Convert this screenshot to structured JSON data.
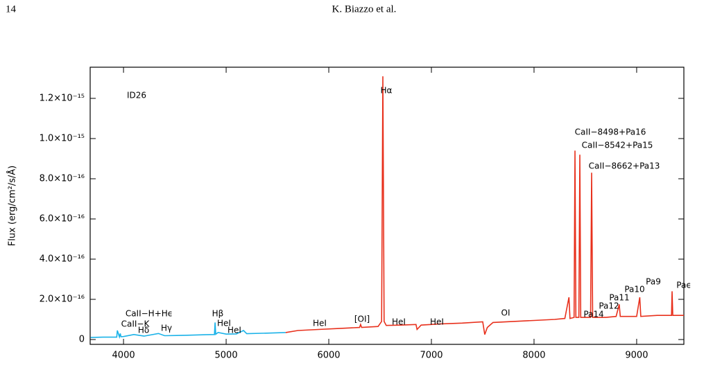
{
  "header": {
    "page": "14",
    "authors": "K. Biazzo et al."
  },
  "chart_data": {
    "type": "line",
    "ylabel": "Flux (erg/cm²/s/Å)",
    "xlim": [
      3675,
      9460
    ],
    "ylim": [
      -2.4e-17,
      1.355e-15
    ],
    "xticks": [
      4000,
      5000,
      6000,
      7000,
      8000,
      9000
    ],
    "yticks": [
      0,
      {
        "value": 2e-16,
        "label": "2.0×10⁻¹⁶"
      },
      {
        "value": 4e-16,
        "label": "4.0×10⁻¹⁶"
      },
      {
        "value": 6e-16,
        "label": "6.0×10⁻¹⁶"
      },
      {
        "value": 8e-16,
        "label": "8.0×10⁻¹⁶"
      },
      {
        "value": 1e-15,
        "label": "1.0×10⁻¹⁵"
      },
      {
        "value": 1.2e-15,
        "label": "1.2×10⁻¹⁵"
      }
    ],
    "series": [
      {
        "color": "#1ab2e8",
        "x": [
          3680,
          3800,
          3934,
          3940,
          3960,
          3968,
          3975,
          4000,
          4101,
          4200,
          4340,
          4400,
          4600,
          4800,
          4886,
          4892,
          4898,
          4921,
          5000,
          5100,
          5169,
          5200,
          5400,
          5580
        ],
        "values": [
          1e-17,
          1.2e-17,
          1.2e-17,
          4.5e-17,
          1.3e-17,
          3e-17,
          1.4e-17,
          1.5e-17,
          2.5e-17,
          1.7e-17,
          3e-17,
          1.9e-17,
          2.1e-17,
          2.4e-17,
          2.5e-17,
          8.5e-17,
          2.6e-17,
          3.5e-17,
          2.7e-17,
          2.8e-17,
          4.5e-17,
          2.9e-17,
          3.2e-17,
          3.5e-17
        ]
      },
      {
        "color": "#e8301c",
        "x": [
          5580,
          5700,
          5900,
          6100,
          6300,
          6310,
          6320,
          6480,
          6515,
          6527,
          6539,
          6560,
          6700,
          6850,
          6860,
          6900,
          7100,
          7300,
          7500,
          7520,
          7545,
          7600,
          7800,
          8000,
          8200,
          8300,
          8340,
          8350,
          8390,
          8399,
          8408,
          8437,
          8446,
          8455,
          8551,
          8561,
          8571,
          8650,
          8700,
          8800,
          8830,
          8840,
          9000,
          9030,
          9040,
          9200,
          9340,
          9345,
          9352,
          9460
        ],
        "values": [
          3.5e-17,
          4.5e-17,
          5e-17,
          5.5e-17,
          6e-17,
          7.5e-17,
          6e-17,
          6.5e-17,
          9e-17,
          1.31e-15,
          9e-17,
          7e-17,
          7.2e-17,
          7.5e-17,
          5e-17,
          7.2e-17,
          7.8e-17,
          8.2e-17,
          8.8e-17,
          2.5e-17,
          6e-17,
          8.5e-17,
          9e-17,
          9.5e-17,
          1e-16,
          1.05e-16,
          2.1e-16,
          1.05e-16,
          1.1e-16,
          9.4e-16,
          1.1e-16,
          1.1e-16,
          9.2e-16,
          1.1e-16,
          1.1e-16,
          8.3e-16,
          1.1e-16,
          1.1e-16,
          1.1e-16,
          1.15e-16,
          1.75e-16,
          1.15e-16,
          1.15e-16,
          2.1e-16,
          1.15e-16,
          1.2e-16,
          1.2e-16,
          2.4e-16,
          1.2e-16,
          1.2e-16
        ]
      }
    ],
    "annotations": [
      "ID26",
      "Hα",
      "CaII−8498+Pa16",
      "CaII−8542+Pa15",
      "CaII−8662+Pa13",
      "Paϵ",
      "Pa9",
      "Pa10",
      "Pa11",
      "Pa12",
      "Pa14",
      "OI",
      "HeI",
      "HeI",
      "[OI]",
      "HeI",
      "HeI",
      "HeI",
      "Hβ",
      "Hγ",
      "CaII−K",
      "Hδ",
      "CaII−H+Hϵ"
    ]
  }
}
